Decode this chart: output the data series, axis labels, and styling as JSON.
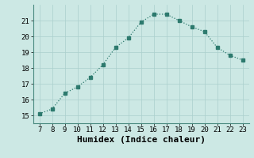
{
  "x": [
    7,
    8,
    9,
    10,
    11,
    12,
    13,
    14,
    15,
    16,
    17,
    18,
    19,
    20,
    21,
    22,
    23
  ],
  "y": [
    15.1,
    15.4,
    16.4,
    16.8,
    17.4,
    18.2,
    19.3,
    19.9,
    20.9,
    21.4,
    21.4,
    21.0,
    20.6,
    20.3,
    19.3,
    18.8,
    18.5
  ],
  "xlim": [
    6.5,
    23.5
  ],
  "ylim": [
    14.5,
    22.0
  ],
  "xticks": [
    7,
    8,
    9,
    10,
    11,
    12,
    13,
    14,
    15,
    16,
    17,
    18,
    19,
    20,
    21,
    22,
    23
  ],
  "yticks": [
    15,
    16,
    17,
    18,
    19,
    20,
    21
  ],
  "xlabel": "Humidex (Indice chaleur)",
  "line_color": "#2d7a6e",
  "marker_color": "#2d7a6e",
  "bg_color": "#cce8e4",
  "grid_color": "#aacfcc",
  "tick_fontsize": 6.5,
  "label_fontsize": 8
}
